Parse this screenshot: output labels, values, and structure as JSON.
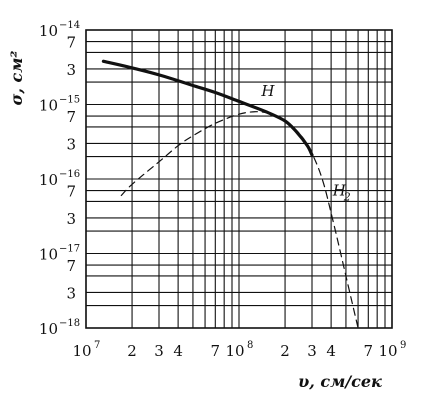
{
  "chart_data": {
    "type": "line",
    "title": "",
    "xlabel": "υ,  см/сек",
    "ylabel": "σ, см²",
    "x_scale": "log",
    "y_scale": "log",
    "xlim": [
      10000000.0,
      1000000000.0
    ],
    "ylim": [
      1e-18,
      1e-14
    ],
    "grid": true,
    "x_ticks": [
      {
        "value": 10000000.0,
        "mantissa": "10",
        "exp": "7"
      },
      {
        "value": 20000000.0,
        "mantissa": "2",
        "exp": ""
      },
      {
        "value": 30000000.0,
        "mantissa": "3",
        "exp": ""
      },
      {
        "value": 40000000.0,
        "mantissa": "4",
        "exp": ""
      },
      {
        "value": 70000000.0,
        "mantissa": "7",
        "exp": ""
      },
      {
        "value": 100000000.0,
        "mantissa": "10",
        "exp": "8"
      },
      {
        "value": 200000000.0,
        "mantissa": "2",
        "exp": ""
      },
      {
        "value": 300000000.0,
        "mantissa": "3",
        "exp": ""
      },
      {
        "value": 400000000.0,
        "mantissa": "4",
        "exp": ""
      },
      {
        "value": 700000000.0,
        "mantissa": "7",
        "exp": ""
      },
      {
        "value": 1000000000.0,
        "mantissa": "10",
        "exp": "9"
      }
    ],
    "y_ticks": [
      {
        "value": 1e-14,
        "mantissa": "10",
        "exp": "−14"
      },
      {
        "value": 7e-15,
        "mantissa": "7",
        "exp": ""
      },
      {
        "value": 3e-15,
        "mantissa": "3",
        "exp": ""
      },
      {
        "value": 1e-15,
        "mantissa": "10",
        "exp": "−15"
      },
      {
        "value": 7e-16,
        "mantissa": "7",
        "exp": ""
      },
      {
        "value": 3e-16,
        "mantissa": "3",
        "exp": ""
      },
      {
        "value": 1e-16,
        "mantissa": "10",
        "exp": "−16"
      },
      {
        "value": 7e-17,
        "mantissa": "7",
        "exp": ""
      },
      {
        "value": 3e-17,
        "mantissa": "3",
        "exp": ""
      },
      {
        "value": 1e-17,
        "mantissa": "10",
        "exp": "−17"
      },
      {
        "value": 7e-18,
        "mantissa": "7",
        "exp": ""
      },
      {
        "value": 3e-18,
        "mantissa": "3",
        "exp": ""
      },
      {
        "value": 1e-18,
        "mantissa": "10",
        "exp": "−18"
      }
    ],
    "x_grid": [
      10000000.0,
      20000000.0,
      30000000.0,
      40000000.0,
      50000000.0,
      60000000.0,
      70000000.0,
      80000000.0,
      90000000.0,
      100000000.0,
      200000000.0,
      300000000.0,
      400000000.0,
      500000000.0,
      600000000.0,
      700000000.0,
      800000000.0,
      900000000.0,
      1000000000.0
    ],
    "y_grid": [
      1e-14,
      7e-15,
      5e-15,
      3e-15,
      2e-15,
      1e-15,
      7e-16,
      5e-16,
      3e-16,
      2e-16,
      1e-16,
      7e-17,
      5e-17,
      3e-17,
      2e-17,
      1e-17,
      7e-18,
      5e-18,
      3e-18,
      2e-18,
      1e-18
    ],
    "series": [
      {
        "name": "H",
        "style": "solid-thick",
        "x": [
          13000000.0,
          20000000.0,
          30000000.0,
          50000000.0,
          70000000.0,
          100000000.0,
          150000000.0,
          200000000.0,
          240000000.0,
          280000000.0,
          300000000.0
        ],
        "y": [
          3.8e-15,
          3.1e-15,
          2.5e-15,
          1.8e-15,
          1.45e-15,
          1.1e-15,
          8e-16,
          6e-16,
          4.2e-16,
          2.8e-16,
          2.1e-16
        ]
      },
      {
        "name": "H",
        "sub": "2",
        "style": "dashed",
        "x": [
          17000000.0,
          20000000.0,
          30000000.0,
          40000000.0,
          50000000.0,
          70000000.0,
          100000000.0,
          130000000.0,
          160000000.0,
          200000000.0,
          250000000.0,
          300000000.0,
          350000000.0,
          400000000.0,
          500000000.0,
          600000000.0
        ],
        "y": [
          6e-17,
          8.5e-17,
          1.7e-16,
          2.8e-16,
          3.8e-16,
          5.6e-16,
          7.4e-16,
          8e-16,
          7.5e-16,
          6e-16,
          4e-16,
          2.2e-16,
          1e-16,
          3.5e-17,
          5e-18,
          1e-18
        ]
      }
    ],
    "annotations": [
      {
        "text": "H",
        "sub": "",
        "x": 140000000.0,
        "y": 1.3e-15
      },
      {
        "text": "H",
        "sub": "2",
        "x": 410000000.0,
        "y": 6e-17
      }
    ]
  }
}
